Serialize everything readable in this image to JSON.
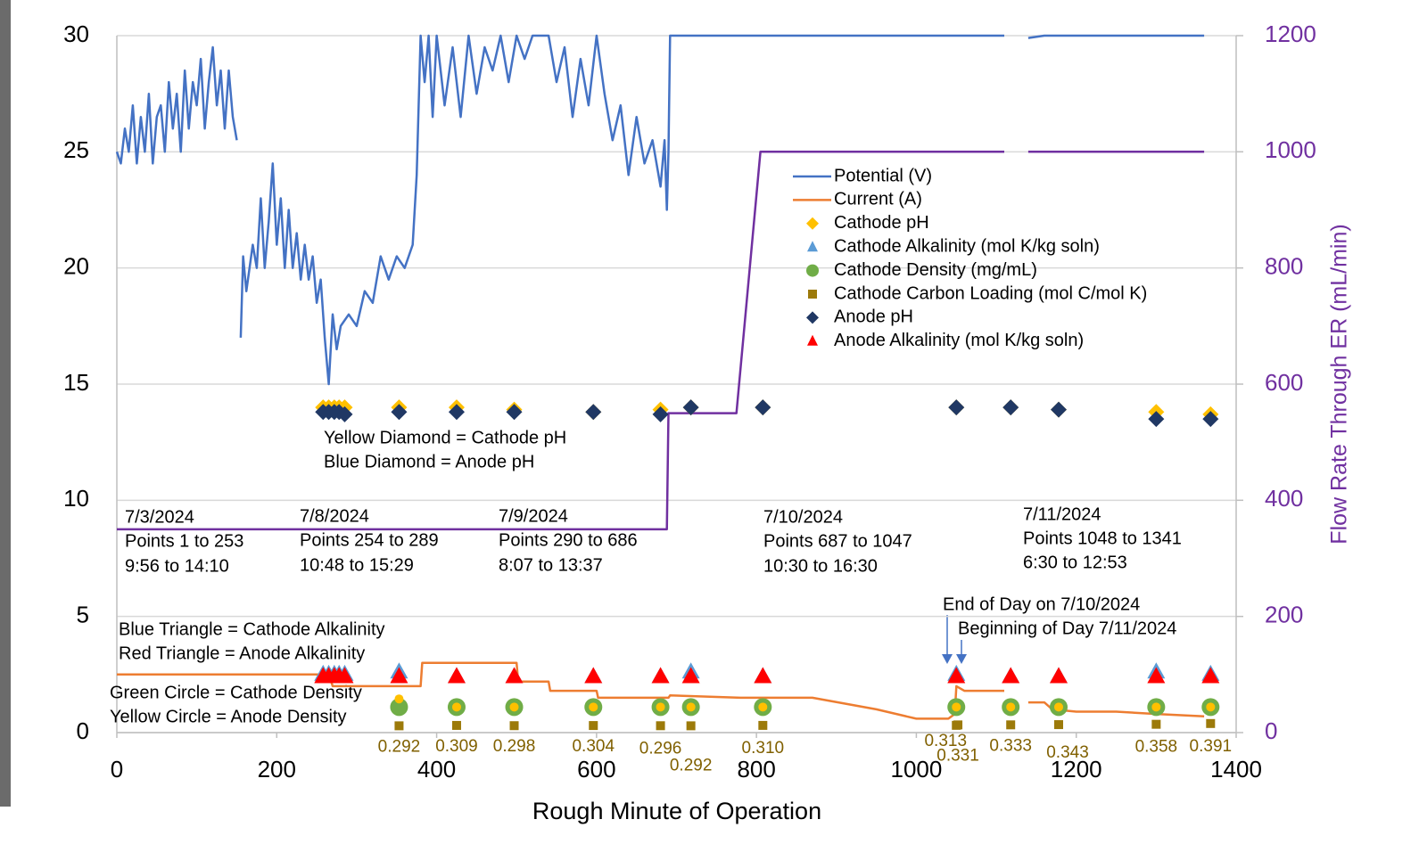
{
  "chart_data": {
    "type": "line",
    "x_label": "Rough Minute of Operation",
    "y2_label": "Flow Rate Through ER (mL/min)",
    "xlim": [
      0,
      1400
    ],
    "xticks": [
      0,
      200,
      400,
      600,
      800,
      1000,
      1200,
      1400
    ],
    "ylim": [
      0,
      30
    ],
    "yticks": [
      0,
      5,
      10,
      15,
      20,
      25,
      30
    ],
    "y2lim": [
      0,
      1200
    ],
    "y2ticks": [
      0,
      200,
      400,
      600,
      800,
      1000,
      1200
    ],
    "grid": true,
    "legend": "upper right",
    "series": [
      {
        "name": "Potential (V)",
        "color": "#4472c4",
        "marker": "line",
        "x": [
          0,
          5,
          10,
          15,
          20,
          25,
          30,
          35,
          40,
          45,
          50,
          55,
          60,
          65,
          70,
          75,
          80,
          85,
          90,
          95,
          100,
          105,
          110,
          115,
          120,
          125,
          130,
          135,
          140,
          145,
          150,
          152,
          155,
          158,
          162,
          170,
          175,
          180,
          185,
          190,
          195,
          200,
          205,
          210,
          215,
          220,
          225,
          230,
          235,
          240,
          245,
          250,
          255,
          260,
          265,
          270,
          275,
          280,
          290,
          300,
          310,
          320,
          330,
          340,
          350,
          360,
          370,
          375,
          380,
          385,
          390,
          395,
          400,
          410,
          420,
          430,
          440,
          450,
          460,
          470,
          480,
          490,
          500,
          510,
          520,
          530,
          540,
          550,
          560,
          570,
          580,
          590,
          600,
          610,
          620,
          630,
          640,
          650,
          660,
          670,
          680,
          685,
          688,
          690,
          692,
          700,
          1110,
          1125,
          1140,
          1160,
          1360
        ],
        "values": [
          25,
          24.5,
          26,
          25,
          27,
          24.5,
          26.5,
          25,
          27.5,
          24.5,
          26.5,
          27,
          25,
          28,
          26,
          27.5,
          25,
          28.5,
          26,
          28,
          27,
          29,
          26,
          28,
          29.5,
          27,
          28.5,
          26,
          28.5,
          26.5,
          25.5,
          null,
          17,
          20.5,
          19,
          21,
          20,
          23,
          20,
          22,
          24.5,
          21,
          23,
          20,
          22.5,
          20,
          21.5,
          19.5,
          21,
          19.5,
          20.5,
          18.5,
          19.5,
          17,
          15,
          18,
          16.5,
          17.5,
          18,
          17.5,
          19,
          18.5,
          20.5,
          19.5,
          20.5,
          20,
          21,
          24,
          30,
          28,
          30,
          26.5,
          30,
          27,
          29.5,
          26.5,
          30,
          27.5,
          29.5,
          28.5,
          30,
          28,
          30,
          29,
          30,
          30,
          30,
          28,
          29.5,
          26.5,
          29,
          27,
          30,
          27.5,
          25.5,
          27,
          24,
          26.5,
          24.5,
          25.5,
          23.5,
          25.5,
          22.5,
          25,
          30,
          30,
          30,
          null,
          29.9,
          30,
          30
        ]
      },
      {
        "name": "Current (A)",
        "color": "#ed7d31",
        "marker": "line",
        "x": [
          0,
          265,
          270,
          380,
          382,
          500,
          502,
          540,
          542,
          600,
          602,
          690,
          692,
          780,
          870,
          950,
          1000,
          1040,
          1048,
          1050,
          1060,
          1110,
          1125,
          1140,
          1160,
          1170,
          1200,
          1250,
          1300,
          1360
        ],
        "values": [
          2.5,
          2.5,
          2.0,
          2.0,
          3.0,
          3.0,
          2.2,
          2.2,
          1.8,
          1.8,
          1.5,
          1.5,
          1.6,
          1.5,
          1.5,
          1.0,
          0.6,
          0.6,
          0.8,
          2.0,
          1.8,
          1.8,
          null,
          1.3,
          1.3,
          1.0,
          0.9,
          0.9,
          0.8,
          0.7
        ]
      },
      {
        "name": "Cathode pH",
        "color": "#ffc000",
        "marker": "diamond",
        "x": [
          258,
          265,
          272,
          278,
          285,
          353,
          425,
          497,
          596,
          680,
          718,
          808,
          1050,
          1118,
          1178,
          1300,
          1368
        ],
        "values": [
          14,
          14,
          14,
          14,
          14,
          14,
          14,
          13.9,
          13.8,
          13.9,
          14,
          14,
          14,
          14,
          13.9,
          13.8,
          13.7
        ]
      },
      {
        "name": "Cathode Alkalinity (mol K/kg soln)",
        "color": "#5b9bd5",
        "marker": "triangle",
        "x": [
          258,
          265,
          272,
          278,
          285,
          353,
          425,
          497,
          596,
          680,
          718,
          808,
          1050,
          1118,
          1178,
          1300,
          1368
        ],
        "values": [
          2.5,
          2.5,
          2.5,
          2.5,
          2.5,
          2.6,
          2.4,
          2.4,
          2.4,
          2.4,
          2.6,
          2.4,
          2.5,
          2.4,
          2.4,
          2.6,
          2.5
        ]
      },
      {
        "name": "Cathode Density (mg/mL)",
        "color": "#70ad47",
        "marker": "circle",
        "x": [
          353,
          425,
          497,
          596,
          680,
          718,
          808,
          1050,
          1118,
          1178,
          1300,
          1368
        ],
        "values": [
          1.1,
          1.1,
          1.1,
          1.1,
          1.1,
          1.1,
          1.1,
          1.1,
          1.1,
          1.1,
          1.1,
          1.1
        ]
      },
      {
        "name": "Cathode Carbon Loading (mol C/mol K)",
        "color": "#9c7a0a",
        "marker": "square",
        "x": [
          353,
          425,
          497,
          596,
          680,
          718,
          808,
          1050,
          1052,
          1118,
          1178,
          1300,
          1368
        ],
        "values": [
          0.292,
          0.309,
          0.298,
          0.304,
          0.296,
          0.292,
          0.31,
          0.313,
          0.331,
          0.333,
          0.343,
          0.358,
          0.391
        ],
        "value_labels": [
          "0.292",
          "0.309",
          "0.298",
          "0.304",
          "0.296",
          "0.292",
          "0.310",
          "0.313",
          "0.331",
          "0.333",
          "0.343",
          "0.358",
          "0.391"
        ]
      },
      {
        "name": "Anode pH",
        "color": "#203864",
        "marker": "diamond",
        "x": [
          258,
          265,
          272,
          278,
          285,
          353,
          425,
          497,
          596,
          680,
          718,
          808,
          1050,
          1118,
          1178,
          1300,
          1368
        ],
        "values": [
          13.8,
          13.8,
          13.8,
          13.8,
          13.7,
          13.8,
          13.8,
          13.8,
          13.8,
          13.7,
          14,
          14,
          14,
          14,
          13.9,
          13.5,
          13.5
        ]
      },
      {
        "name": "Anode Alkalinity (mol K/kg soln)",
        "color": "#ff0000",
        "marker": "triangle",
        "x": [
          258,
          265,
          272,
          278,
          285,
          353,
          425,
          497,
          596,
          680,
          718,
          808,
          1050,
          1118,
          1178,
          1300,
          1368
        ],
        "values": [
          2.4,
          2.4,
          2.4,
          2.4,
          2.4,
          2.4,
          2.4,
          2.4,
          2.4,
          2.4,
          2.4,
          2.4,
          2.4,
          2.4,
          2.4,
          2.4,
          2.4
        ]
      },
      {
        "color": "#ffc000",
        "marker": "dot",
        "x": [
          353,
          425,
          497,
          596,
          680,
          718,
          808,
          1050,
          1118,
          1178,
          1300,
          1368
        ],
        "values": [
          1.45,
          1.1,
          1.1,
          1.1,
          1.1,
          1.1,
          1.1,
          1.1,
          1.1,
          1.1,
          1.1,
          1.1
        ]
      },
      {
        "name": "Flow Rate Through ER (mL/min)",
        "color": "#7030a0",
        "marker": "line",
        "axis": "y2",
        "x": [
          0,
          688,
          690,
          775,
          805,
          1110,
          1125,
          1140,
          1360
        ],
        "values": [
          350,
          350,
          550,
          550,
          1000,
          1000,
          null,
          1000,
          1000
        ]
      }
    ],
    "annotations": [
      "Yellow Diamond = Cathode pH",
      "Blue Diamond = Anode pH",
      "Blue Triangle = Cathode Alkalinity",
      "Red Triangle = Anode Alkalinity",
      "Green Circle = Cathode Density",
      "Yellow Circle = Anode Density",
      "End of Day on 7/10/2024",
      "Beginning of Day 7/11/2024",
      "7/3/2024",
      "Points 1 to 253",
      "9:56 to 14:10",
      "7/8/2024",
      "Points 254 to 289",
      "10:48 to 15:29",
      "7/9/2024",
      "Points 290 to 686",
      "8:07 to 13:37",
      "7/10/2024",
      "Points 687 to 1047",
      "10:30 to 16:30",
      "7/11/2024",
      "Points 1048 to 1341",
      "6:30 to 12:53"
    ]
  }
}
